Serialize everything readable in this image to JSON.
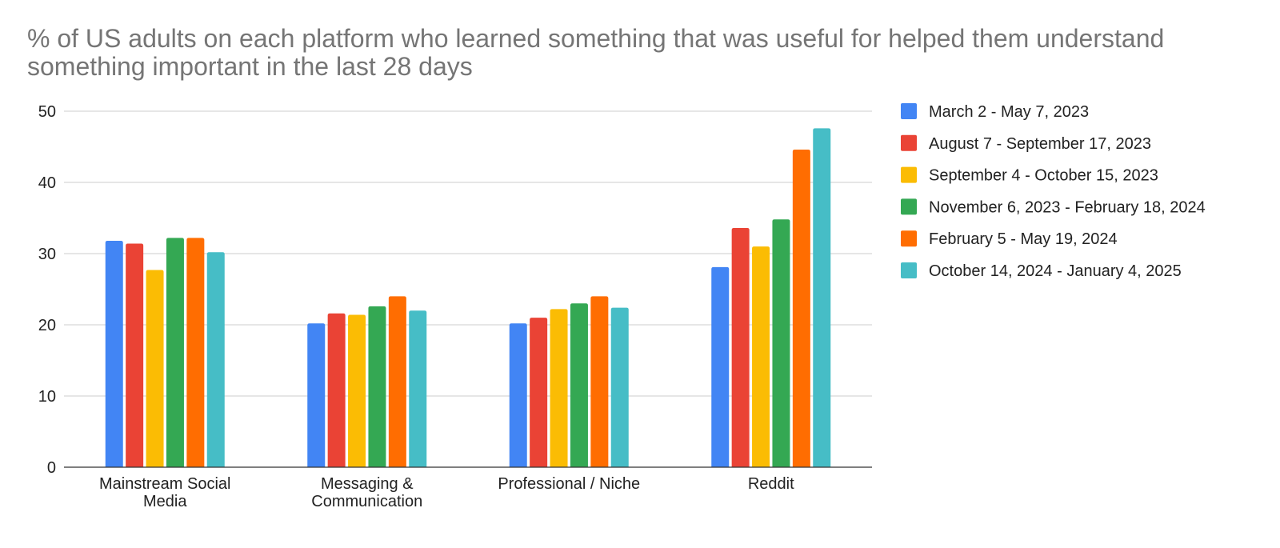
{
  "chart_data": {
    "type": "bar",
    "title": "% of US adults on each platform who learned something that was useful for helped them understand something important in the last 28 days",
    "categories": [
      [
        "Mainstream Social",
        "Media"
      ],
      [
        "Messaging &",
        "Communication"
      ],
      [
        "Professional / Niche"
      ],
      [
        "Reddit"
      ]
    ],
    "ylim": [
      0,
      50
    ],
    "yticks": [
      0,
      10,
      20,
      30,
      40,
      50
    ],
    "grid": true,
    "legend_position": "right",
    "series": [
      {
        "name": "March 2 - May 7, 2023",
        "color": "#4285f4",
        "values": [
          31.8,
          20.2,
          20.2,
          28.1
        ]
      },
      {
        "name": "August 7 - September 17, 2023",
        "color": "#ea4335",
        "values": [
          31.4,
          21.6,
          21.0,
          33.6
        ]
      },
      {
        "name": "September 4 - October 15, 2023",
        "color": "#fbbc04",
        "values": [
          27.7,
          21.4,
          22.2,
          31.0
        ]
      },
      {
        "name": "November 6, 2023 - February 18, 2024",
        "color": "#34a853",
        "values": [
          32.2,
          22.6,
          23.0,
          34.8
        ]
      },
      {
        "name": "February 5 - May 19, 2024",
        "color": "#ff6d01",
        "values": [
          32.2,
          24.0,
          24.0,
          44.6
        ]
      },
      {
        "name": "October 14, 2024 - January 4, 2025",
        "color": "#46bdc6",
        "values": [
          30.2,
          22.0,
          22.4,
          47.6
        ]
      }
    ]
  }
}
